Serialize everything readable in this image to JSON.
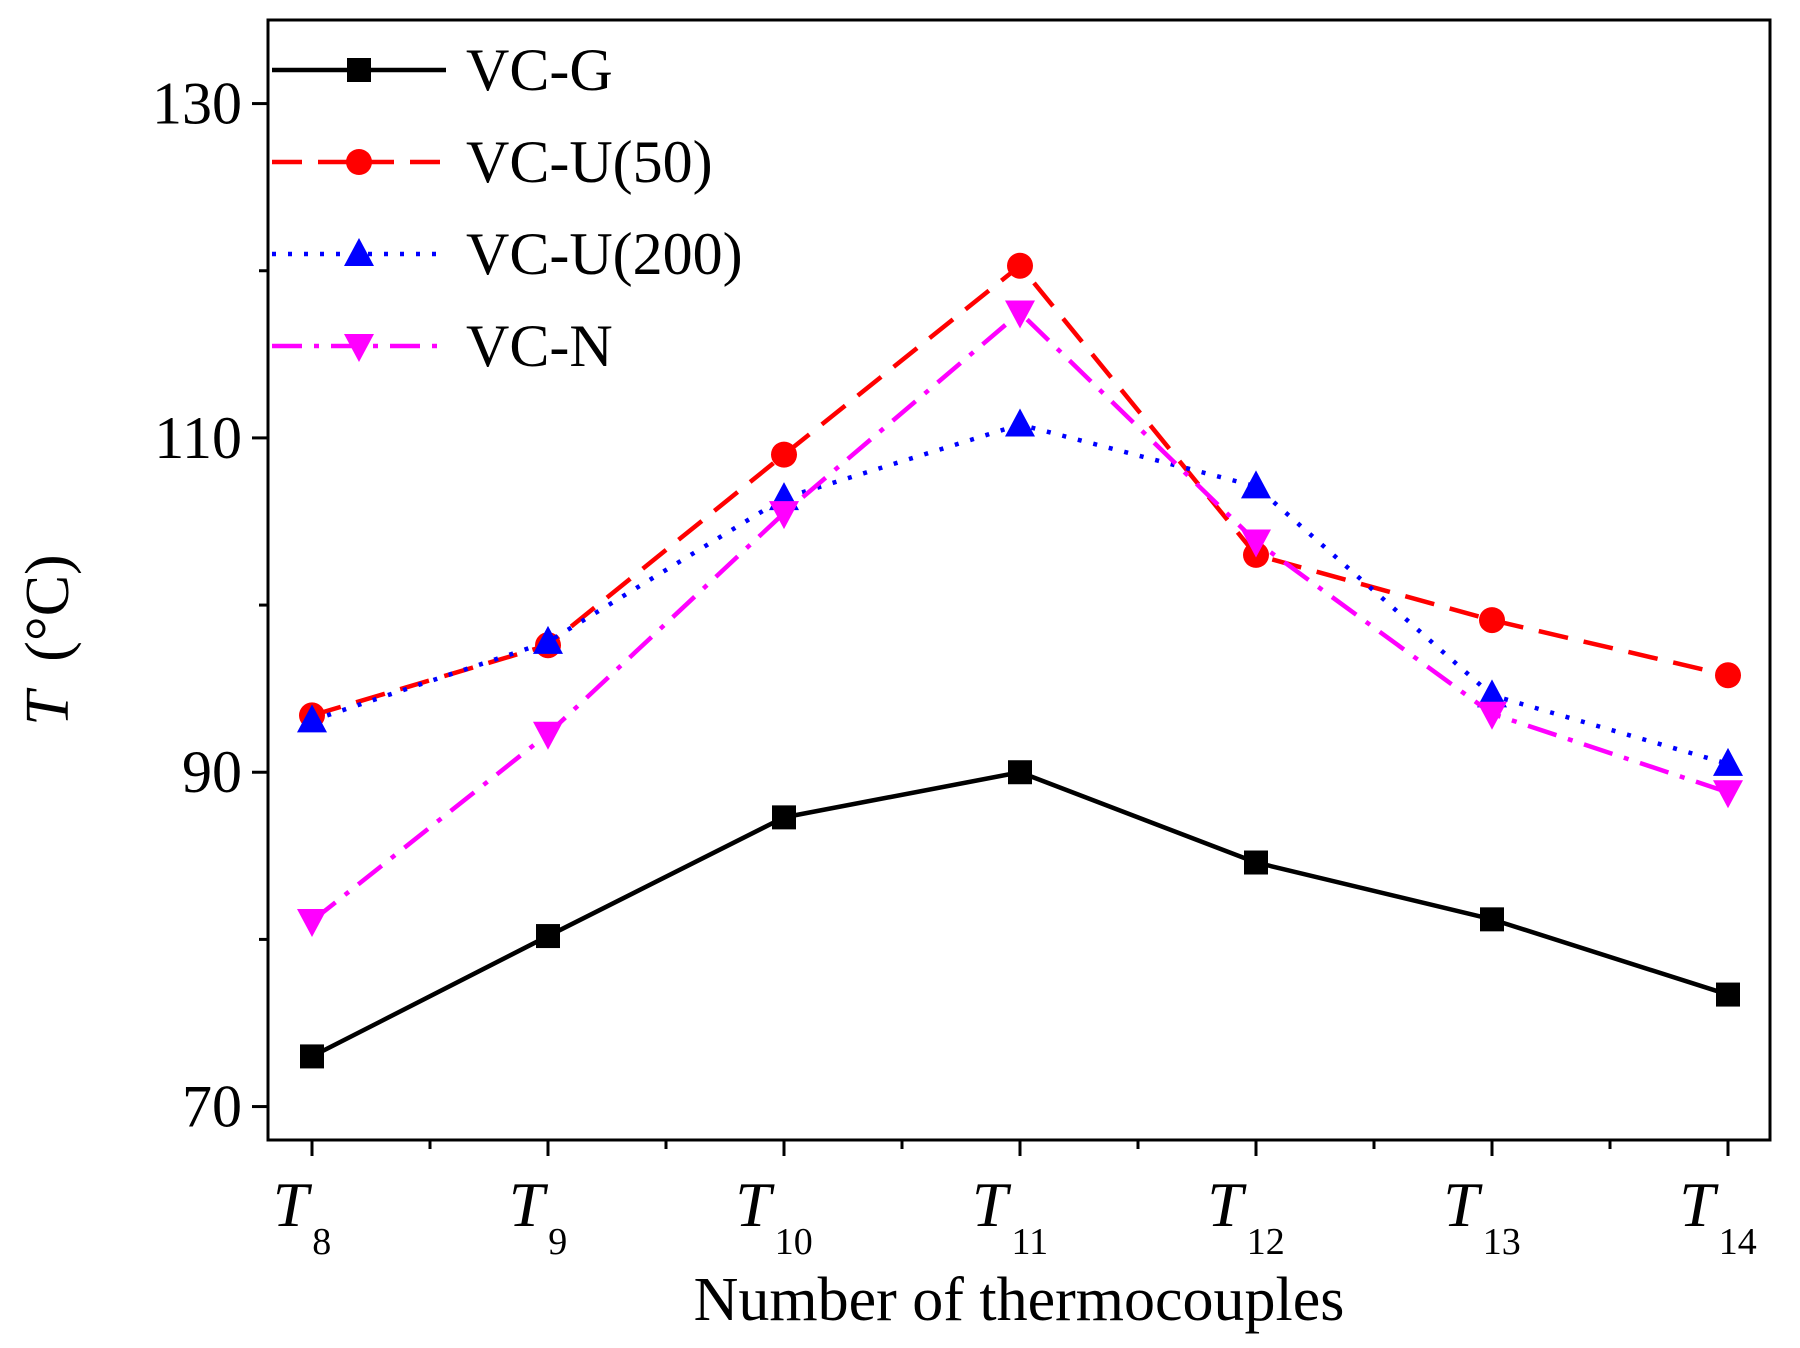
{
  "chart_data": {
    "type": "line",
    "title": "",
    "xlabel": "Number of thermocouples",
    "ylabel": "T (°C)",
    "ylabel_italic": "T",
    "ylabel_unit": "(°C)",
    "ylim": [
      68,
      135
    ],
    "yticks": [
      70,
      90,
      110,
      130
    ],
    "categories": [
      {
        "main": "T",
        "sub": "8"
      },
      {
        "main": "T",
        "sub": "9"
      },
      {
        "main": "T",
        "sub": "10"
      },
      {
        "main": "T",
        "sub": "11"
      },
      {
        "main": "T",
        "sub": "12"
      },
      {
        "main": "T",
        "sub": "13"
      },
      {
        "main": "T",
        "sub": "14"
      }
    ],
    "legend_position": "top-left",
    "series": [
      {
        "name": "VC-G",
        "color": "#000000",
        "dash": "solid",
        "marker": "square",
        "values": [
          73.0,
          80.2,
          87.3,
          90.0,
          84.6,
          81.2,
          76.7
        ]
      },
      {
        "name": "VC-U(50)",
        "color": "#ff0000",
        "dash": "dash",
        "marker": "circle",
        "values": [
          93.4,
          97.6,
          109.0,
          120.3,
          103.0,
          99.1,
          95.8
        ]
      },
      {
        "name": "VC-U(200)",
        "color": "#0000ff",
        "dash": "dot",
        "marker": "triangle-up",
        "values": [
          93.1,
          97.8,
          106.4,
          110.8,
          107.1,
          94.6,
          90.5
        ]
      },
      {
        "name": "VC-N",
        "color": "#ff00ff",
        "dash": "dashdot",
        "marker": "triangle-down",
        "values": [
          81.1,
          92.3,
          105.5,
          117.5,
          103.8,
          93.5,
          88.8
        ]
      }
    ]
  }
}
